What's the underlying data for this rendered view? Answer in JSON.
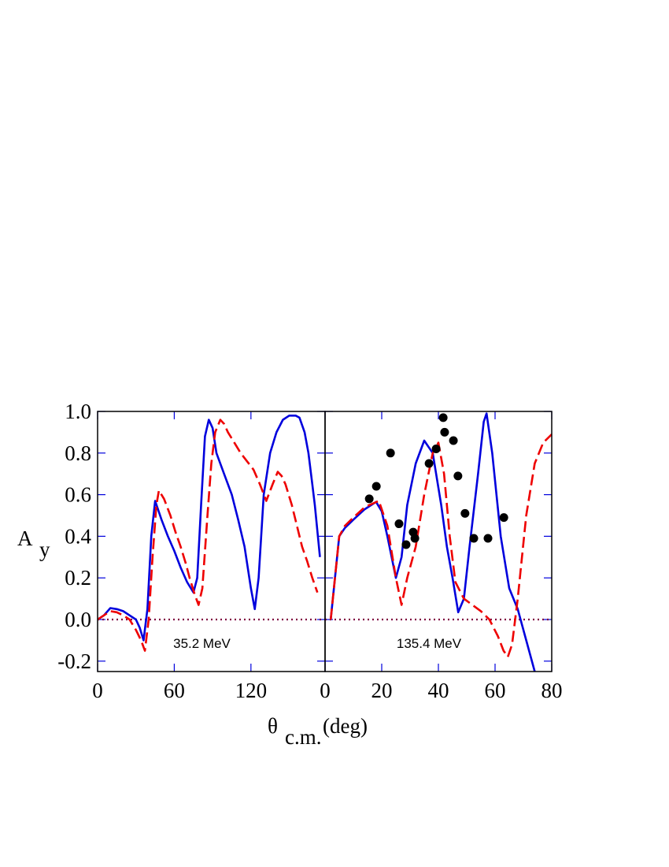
{
  "figure": {
    "ylabel": {
      "main": "A",
      "sub": "y"
    },
    "xlabel": {
      "main": "θ",
      "sub": "c.m.",
      "rest": "(deg)"
    }
  },
  "chart_data": [
    {
      "type": "line",
      "annotation": "35.2 MeV",
      "xlim": [
        0,
        178
      ],
      "xticks": [
        0,
        60,
        120
      ],
      "ylim": [
        -0.25,
        1.0
      ],
      "yticks": [
        {
          "value": -0.2,
          "label": "-0.2"
        },
        {
          "value": 0,
          "label": "0.0"
        },
        0.2,
        0.4,
        0.6,
        0.8,
        {
          "value": 1,
          "label": "1.0"
        }
      ],
      "hline": 0,
      "hline_color": "#800040",
      "series": [
        {
          "color": "#0000dd",
          "style": "solid",
          "x": [
            0,
            5,
            10,
            15,
            20,
            25,
            30,
            33,
            36,
            39,
            42,
            45,
            50,
            55,
            60,
            65,
            70,
            75,
            78,
            81,
            84,
            87,
            90,
            93,
            99,
            105,
            110,
            115,
            120,
            123,
            126,
            130,
            135,
            140,
            145,
            150,
            155,
            158,
            162,
            165,
            168,
            170,
            174
          ],
          "values": [
            0,
            0.02,
            0.055,
            0.05,
            0.04,
            0.02,
            0.0,
            -0.04,
            -0.1,
            0.05,
            0.4,
            0.57,
            0.48,
            0.4,
            0.33,
            0.25,
            0.18,
            0.13,
            0.2,
            0.55,
            0.88,
            0.96,
            0.92,
            0.8,
            0.7,
            0.6,
            0.48,
            0.35,
            0.15,
            0.05,
            0.2,
            0.6,
            0.8,
            0.9,
            0.96,
            0.98,
            0.98,
            0.97,
            0.9,
            0.8,
            0.65,
            0.55,
            0.3
          ]
        },
        {
          "color": "#ee0000",
          "style": "dashed",
          "x": [
            0,
            5,
            10,
            15,
            20,
            25,
            30,
            34,
            37,
            40,
            43,
            46,
            48,
            52,
            57,
            61,
            65,
            69,
            72,
            76,
            79,
            82,
            86,
            89,
            92,
            96,
            99,
            102,
            107,
            112,
            117,
            122,
            127,
            132,
            137,
            141,
            144,
            147,
            152,
            156,
            160,
            164,
            168,
            172
          ],
          "values": [
            0,
            0.02,
            0.04,
            0.035,
            0.02,
            0.0,
            -0.05,
            -0.1,
            -0.15,
            0.0,
            0.3,
            0.55,
            0.62,
            0.58,
            0.5,
            0.42,
            0.35,
            0.27,
            0.2,
            0.12,
            0.07,
            0.15,
            0.5,
            0.75,
            0.9,
            0.96,
            0.94,
            0.9,
            0.85,
            0.8,
            0.76,
            0.72,
            0.65,
            0.57,
            0.65,
            0.71,
            0.69,
            0.65,
            0.55,
            0.45,
            0.35,
            0.28,
            0.2,
            0.13
          ]
        }
      ]
    },
    {
      "type": "line",
      "annotation": "135.4 MeV",
      "xlim": [
        0,
        80
      ],
      "xticks": [
        0,
        20,
        40,
        60,
        80
      ],
      "ylim": [
        -0.25,
        1.0
      ],
      "hline": 0,
      "hline_color": "#800040",
      "series": [
        {
          "color": "#0000dd",
          "style": "solid",
          "x": [
            2,
            3.5,
            5,
            7,
            10,
            14,
            18,
            20,
            22,
            25,
            27,
            29,
            32,
            35,
            38,
            41,
            43,
            45,
            47,
            49,
            51,
            54,
            56,
            57,
            59,
            62,
            65,
            68,
            71,
            74
          ],
          "values": [
            0,
            0.2,
            0.4,
            0.44,
            0.48,
            0.53,
            0.565,
            0.52,
            0.4,
            0.2,
            0.3,
            0.55,
            0.75,
            0.86,
            0.8,
            0.55,
            0.35,
            0.2,
            0.035,
            0.1,
            0.35,
            0.7,
            0.95,
            0.99,
            0.8,
            0.4,
            0.15,
            0.05,
            -0.1,
            -0.25
          ]
        },
        {
          "color": "#ee0000",
          "style": "dashed",
          "x": [
            2,
            3.5,
            5,
            7,
            10,
            14,
            19,
            22,
            25,
            27,
            29,
            32,
            35,
            38,
            40,
            42,
            44,
            46,
            49,
            52,
            55,
            58,
            61,
            63,
            64.5,
            66,
            68,
            71,
            74,
            77,
            80
          ],
          "values": [
            0,
            0.2,
            0.4,
            0.45,
            0.49,
            0.54,
            0.57,
            0.45,
            0.2,
            0.07,
            0.2,
            0.35,
            0.6,
            0.8,
            0.85,
            0.7,
            0.4,
            0.18,
            0.1,
            0.07,
            0.04,
            0.0,
            -0.08,
            -0.15,
            -0.18,
            -0.12,
            0.1,
            0.5,
            0.75,
            0.85,
            0.89
          ]
        },
        {
          "color": "#000000",
          "style": "points",
          "x": [
            15.6,
            18.1,
            23.1,
            26.1,
            28.6,
            31.1,
            31.7,
            36.7,
            39.2,
            41.7,
            42.2,
            45.3,
            46.9,
            49.4,
            52.5,
            57.5,
            63.1
          ],
          "values": [
            0.58,
            0.64,
            0.8,
            0.46,
            0.36,
            0.42,
            0.39,
            0.75,
            0.82,
            0.97,
            0.9,
            0.86,
            0.69,
            0.51,
            0.39,
            0.39,
            0.49
          ]
        }
      ]
    }
  ]
}
